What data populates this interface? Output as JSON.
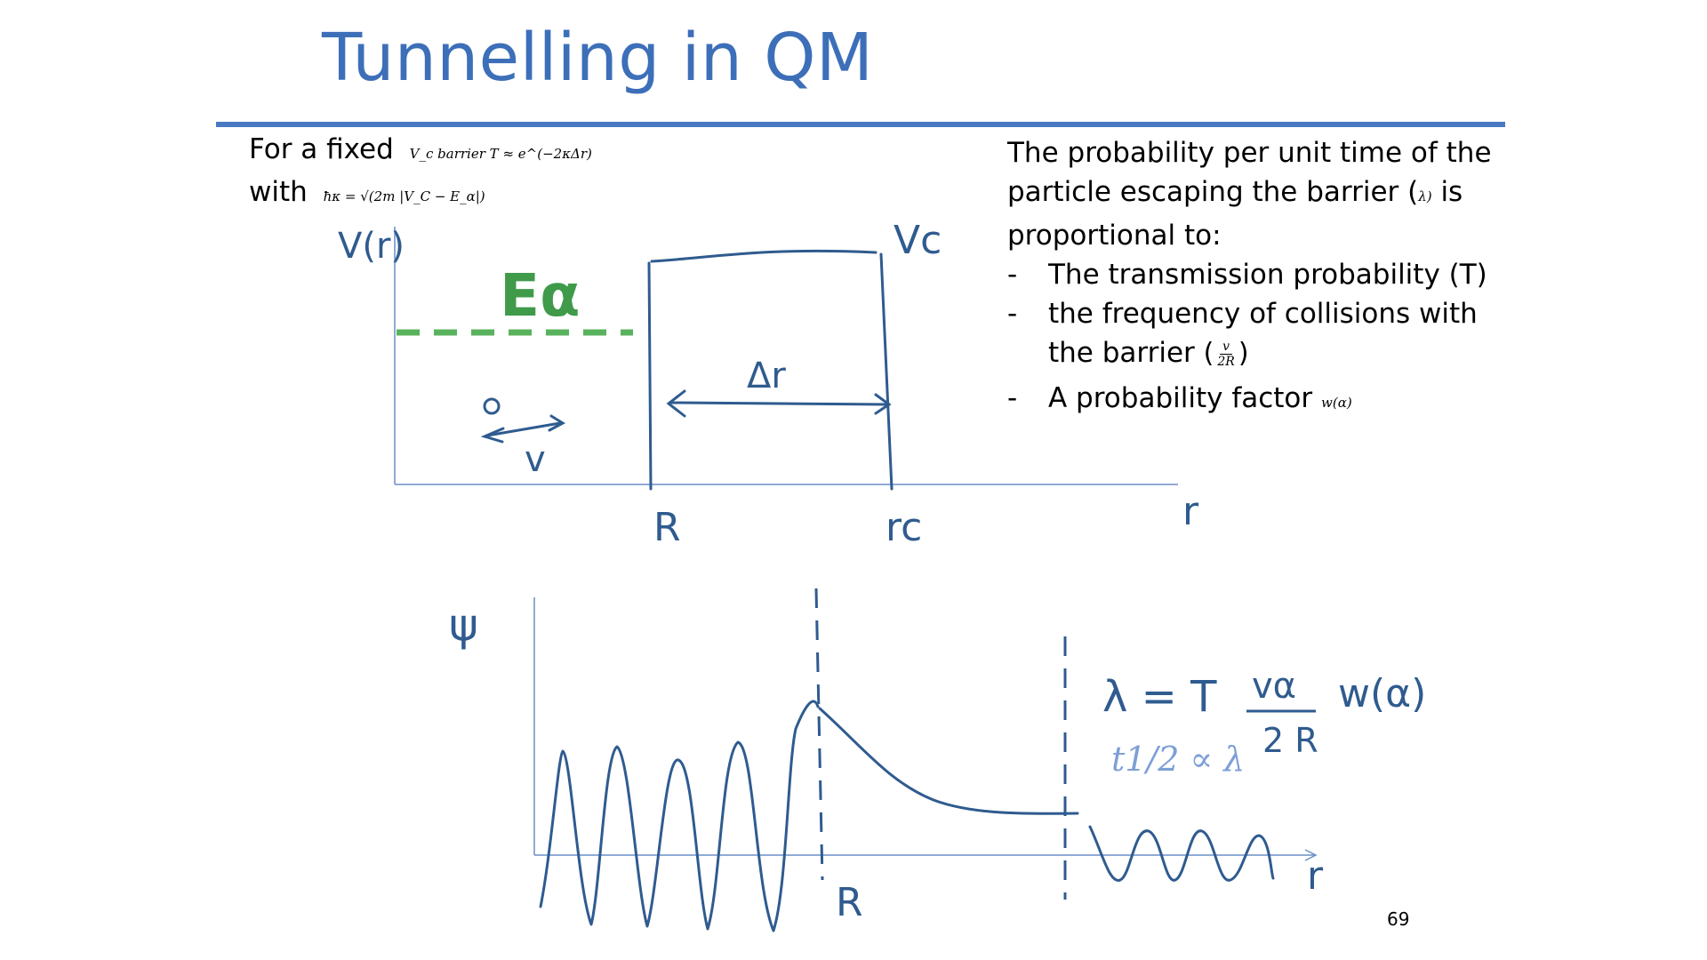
{
  "title": "Tunnelling in QM",
  "left_lines": {
    "line1_text": "For a fixed",
    "line1_math": "V_c barrier T ≈ e^(−2κΔr)",
    "line2_text": "with",
    "line2_math": "ħκ = √(2m |V_C − E_α|)"
  },
  "right_panel": {
    "intro": "The probability per unit time of the particle escaping the barrier (",
    "intro_symbol": "λ)",
    "intro_end": " is proportional to:",
    "dash": "-",
    "bullet1": "The transmission probability (T)",
    "bullet2_a": " the frequency of collisions with",
    "bullet2_b": "the barrier",
    "frac_num": "v",
    "frac_den": "2R",
    "bullet3": "A probability factor",
    "bullet3_symbol": "w(α)"
  },
  "sketch_labels": {
    "v_axis": "V(r)",
    "energy": "Eα",
    "barrier": "Vc",
    "delta_r": "Δr",
    "velocity": "v",
    "R": "R",
    "rc": "rc",
    "r_axis": "r",
    "psi": "ψ",
    "R2": "R",
    "r_axis2": "r",
    "lambda_eq": "λ = T",
    "lambda_num": "vα",
    "lambda_den": "2 R",
    "w": "w(α)"
  },
  "half_life": "t1/2 ∝ λ",
  "page_number": "69",
  "colors": {
    "title": "#3d6fb9",
    "ink": "#2f5b8f",
    "energy": "#3f9a4a",
    "dashed_energy": "#59b35d"
  }
}
